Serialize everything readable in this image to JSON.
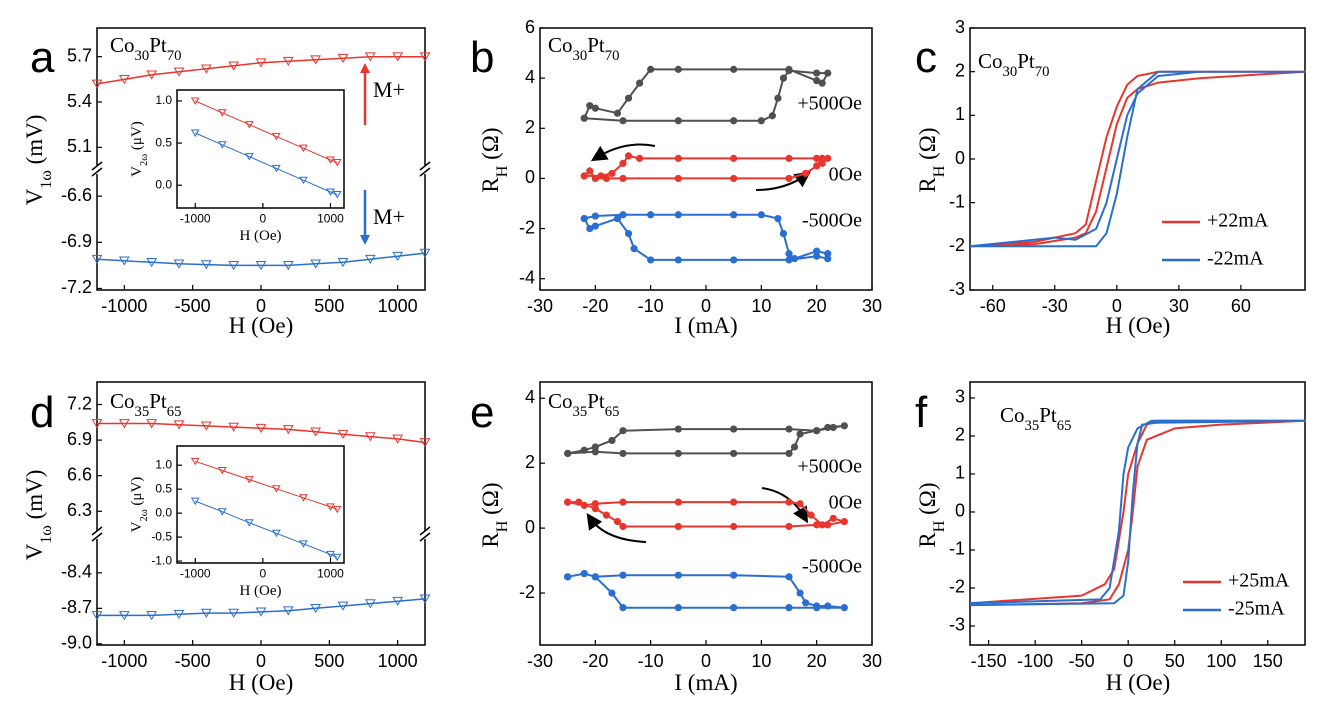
{
  "chart_data": [
    {
      "type": "line",
      "label": "a",
      "title_parts": [
        "Co",
        "30",
        "Pt",
        "70"
      ],
      "xlabel": "H (Oe)",
      "ylabel_parts": [
        "V",
        "1ω",
        " (mV)"
      ],
      "xlim": [
        -1200,
        1200
      ],
      "xticks": [
        -1000,
        -500,
        0,
        500,
        1000
      ],
      "y_segments": [
        {
          "ylim": [
            4.95,
            5.89
          ],
          "yticks": [
            5.1,
            5.4,
            5.7
          ]
        },
        {
          "ylim": [
            -7.21,
            -6.43
          ],
          "yticks": [
            -7.2,
            -6.9,
            -6.6
          ]
        }
      ],
      "series": [
        {
          "color": "#e8352e",
          "marker": "triangle-open",
          "segment": 0,
          "x": [
            -1200,
            -1000,
            -800,
            -600,
            -400,
            -200,
            0,
            200,
            400,
            600,
            800,
            1000,
            1200
          ],
          "values": [
            5.52,
            5.55,
            5.58,
            5.6,
            5.62,
            5.64,
            5.66,
            5.67,
            5.68,
            5.69,
            5.7,
            5.7,
            5.7
          ]
        },
        {
          "color": "#2a6ecf",
          "marker": "triangle-open",
          "segment": 1,
          "x": [
            -1200,
            -1000,
            -800,
            -600,
            -400,
            -200,
            0,
            200,
            400,
            600,
            800,
            1000,
            1200
          ],
          "values": [
            -7.01,
            -7.02,
            -7.03,
            -7.04,
            -7.045,
            -7.05,
            -7.05,
            -7.05,
            -7.04,
            -7.03,
            -7.01,
            -6.99,
            -6.97
          ]
        }
      ],
      "annotations": [
        {
          "text": "M+",
          "color": "#e8352e"
        },
        {
          "text": "M+",
          "color": "#2a6ecf"
        }
      ],
      "inset": {
        "type": "line",
        "xlabel": "H (Oe)",
        "ylabel_parts": [
          "V",
          "2ω",
          " (μV)"
        ],
        "xlim": [
          -1270,
          1200
        ],
        "xticks": [
          -1000,
          0,
          1000
        ],
        "ylim": [
          -0.27,
          1.13
        ],
        "yticks": [
          {
            "value": 0,
            "label": "0.0"
          },
          {
            "value": 0.5,
            "label": "0.5"
          },
          {
            "value": 1,
            "label": "1.0"
          }
        ],
        "series": [
          {
            "color": "#e8352e",
            "marker": "triangle-open",
            "x": [
              -1000,
              -600,
              -200,
              200,
              600,
              1000,
              1100
            ],
            "values": [
              1.0,
              0.86,
              0.72,
              0.58,
              0.44,
              0.3,
              0.27
            ]
          },
          {
            "color": "#2a6ecf",
            "marker": "triangle-open",
            "x": [
              -1000,
              -600,
              -200,
              200,
              600,
              1000,
              1100
            ],
            "values": [
              0.62,
              0.48,
              0.34,
              0.2,
              0.06,
              -0.08,
              -0.11
            ]
          }
        ]
      }
    },
    {
      "type": "line",
      "label": "b",
      "title_parts": [
        "Co",
        "30",
        "Pt",
        "70"
      ],
      "xlabel": "I (mA)",
      "ylabel_parts": [
        "R",
        "H",
        " (Ω)"
      ],
      "xlim": [
        -30,
        30
      ],
      "xticks": [
        -30,
        -20,
        -10,
        0,
        10,
        20,
        30
      ],
      "ylim": [
        -4.45,
        6
      ],
      "yticks": [
        -4,
        -2,
        0,
        2,
        4,
        6
      ],
      "series": [
        {
          "name": "+500Oe",
          "color": "#505050",
          "marker": "circle",
          "x": [
            -22,
            -15,
            -5,
            5,
            10,
            12,
            13,
            14,
            15,
            20,
            22,
            21,
            20,
            15,
            5,
            -5,
            -10,
            -12,
            -14,
            -16,
            -20,
            -21,
            -22
          ],
          "values": [
            2.4,
            2.3,
            2.3,
            2.3,
            2.3,
            2.5,
            3.2,
            4.0,
            4.3,
            4.2,
            4.2,
            3.8,
            3.9,
            4.35,
            4.35,
            4.35,
            4.35,
            3.8,
            3.2,
            2.6,
            2.8,
            2.9,
            2.4
          ]
        },
        {
          "name": "0Oe",
          "color": "#e8352e",
          "marker": "circle",
          "x": [
            -22,
            -21,
            -20,
            -18,
            -15,
            -5,
            5,
            15,
            18,
            20,
            21,
            22,
            21,
            20,
            15,
            5,
            -5,
            -12,
            -14,
            -15,
            -17,
            -19,
            -22
          ],
          "values": [
            0.1,
            0.3,
            0.0,
            0.0,
            0.0,
            0.0,
            0.0,
            0.0,
            0.2,
            0.5,
            0.8,
            0.8,
            0.6,
            0.8,
            0.8,
            0.8,
            0.8,
            0.8,
            0.9,
            0.6,
            0.2,
            0.1,
            0.1
          ]
        },
        {
          "name": "-500Oe",
          "color": "#2a6ecf",
          "marker": "circle",
          "x": [
            -22,
            -20,
            -15,
            -10,
            -5,
            5,
            10,
            13,
            14,
            15,
            16,
            20,
            22,
            22,
            20,
            15,
            5,
            -5,
            -10,
            -13,
            -14,
            -16,
            -20,
            -21,
            -22
          ],
          "values": [
            -1.6,
            -1.5,
            -1.45,
            -1.45,
            -1.45,
            -1.45,
            -1.45,
            -1.6,
            -2.2,
            -3.0,
            -3.2,
            -2.9,
            -3.0,
            -3.2,
            -3.1,
            -3.25,
            -3.25,
            -3.25,
            -3.25,
            -2.8,
            -2.2,
            -1.6,
            -1.9,
            -2.0,
            -1.6
          ]
        }
      ]
    },
    {
      "type": "line",
      "label": "c",
      "title_parts": [
        "Co",
        "30",
        "Pt",
        "70"
      ],
      "xlabel": "H (Oe)",
      "ylabel_parts": [
        "R",
        "H",
        " (Ω)"
      ],
      "xlim": [
        -71,
        91
      ],
      "xticks": [
        -60,
        -30,
        0,
        30,
        60
      ],
      "ylim": [
        -3,
        3
      ],
      "yticks": [
        -3,
        -2,
        -1,
        0,
        1,
        2,
        3
      ],
      "legend": "lower right",
      "series": [
        {
          "name": "+22mA",
          "color": "#e8352e",
          "x": [
            -71,
            -40,
            -20,
            -15,
            -10,
            -5,
            0,
            5,
            10,
            20,
            40,
            91,
            40,
            20,
            10,
            5,
            0,
            -5,
            -10,
            -15,
            -20,
            -40,
            -71
          ],
          "values": [
            -2.0,
            -1.9,
            -1.7,
            -1.5,
            -0.5,
            0.5,
            1.2,
            1.7,
            1.9,
            2.0,
            2.0,
            2.0,
            1.85,
            1.75,
            1.6,
            1.4,
            0.8,
            -0.2,
            -1.2,
            -1.7,
            -1.8,
            -1.95,
            -2.0
          ]
        },
        {
          "name": "-22mA",
          "color": "#2a6ecf",
          "x": [
            -71,
            -30,
            -20,
            -10,
            -5,
            0,
            5,
            10,
            20,
            40,
            91,
            40,
            20,
            10,
            5,
            0,
            -5,
            -10,
            -30,
            -71
          ],
          "values": [
            -2.0,
            -1.8,
            -1.85,
            -1.6,
            -1.0,
            0.0,
            1.0,
            1.5,
            1.9,
            2.0,
            2.0,
            2.0,
            2.0,
            1.6,
            0.5,
            -0.8,
            -1.7,
            -2.0,
            -2.0,
            -2.0
          ]
        }
      ]
    },
    {
      "type": "line",
      "label": "d",
      "title_parts": [
        "Co",
        "35",
        "Pt",
        "65"
      ],
      "xlabel": "H (Oe)",
      "ylabel_parts": [
        "V",
        "1ω",
        " (mV)"
      ],
      "xlim": [
        -1200,
        1200
      ],
      "xticks": [
        -1000,
        -500,
        0,
        500,
        1000
      ],
      "y_segments": [
        {
          "ylim": [
            6.1,
            7.39
          ],
          "yticks": [
            6.3,
            6.6,
            6.9,
            7.2
          ]
        },
        {
          "ylim": [
            -9.01,
            -8.08
          ],
          "yticks": [
            {
              "value": -9,
              "label": "-9.0"
            },
            -8.7,
            -8.4
          ]
        }
      ],
      "series": [
        {
          "color": "#e8352e",
          "marker": "triangle-open",
          "segment": 0,
          "x": [
            -1200,
            -1000,
            -800,
            -600,
            -400,
            -200,
            0,
            200,
            400,
            600,
            800,
            1000,
            1200
          ],
          "values": [
            7.04,
            7.04,
            7.04,
            7.03,
            7.02,
            7.01,
            7.0,
            6.99,
            6.97,
            6.95,
            6.93,
            6.91,
            6.88
          ]
        },
        {
          "color": "#2a6ecf",
          "marker": "triangle-open",
          "segment": 1,
          "x": [
            -1200,
            -1000,
            -800,
            -600,
            -400,
            -200,
            0,
            200,
            400,
            600,
            800,
            1000,
            1200
          ],
          "values": [
            -8.76,
            -8.76,
            -8.76,
            -8.75,
            -8.74,
            -8.74,
            -8.73,
            -8.72,
            -8.7,
            -8.68,
            -8.66,
            -8.64,
            -8.62
          ]
        }
      ],
      "inset": {
        "type": "line",
        "xlabel": "H (Oe)",
        "ylabel_parts": [
          "V",
          "2ω",
          " (μV)"
        ],
        "xlim": [
          -1270,
          1200
        ],
        "xticks": [
          -1000,
          0,
          1000
        ],
        "ylim": [
          -1.04,
          1.4
        ],
        "yticks": [
          {
            "value": -1,
            "label": "-1.0"
          },
          {
            "value": -0.5,
            "label": "-0.5"
          },
          {
            "value": 0,
            "label": "0.0"
          },
          {
            "value": 0.5,
            "label": "0.5"
          },
          {
            "value": 1,
            "label": "1.0"
          }
        ],
        "series": [
          {
            "color": "#e8352e",
            "marker": "triangle-open",
            "x": [
              -1000,
              -600,
              -200,
              200,
              600,
              1000,
              1100
            ],
            "values": [
              1.08,
              0.89,
              0.7,
              0.51,
              0.32,
              0.13,
              0.08
            ]
          },
          {
            "color": "#2a6ecf",
            "marker": "triangle-open",
            "x": [
              -1000,
              -600,
              -200,
              200,
              600,
              1000,
              1100
            ],
            "values": [
              0.25,
              0.03,
              -0.2,
              -0.42,
              -0.64,
              -0.86,
              -0.92
            ]
          }
        ]
      }
    },
    {
      "type": "line",
      "label": "e",
      "title_parts": [
        "Co",
        "35",
        "Pt",
        "65"
      ],
      "xlabel": "I (mA)",
      "ylabel_parts": [
        "R",
        "H",
        " (Ω)"
      ],
      "xlim": [
        -30,
        30
      ],
      "xticks": [
        -30,
        -20,
        -10,
        0,
        10,
        20,
        30
      ],
      "ylim": [
        -3.6,
        4.5
      ],
      "yticks": [
        -2,
        0,
        2,
        4
      ],
      "series": [
        {
          "name": "+500Oe",
          "color": "#505050",
          "marker": "circle",
          "x": [
            -25,
            -20,
            -15,
            -5,
            5,
            15,
            16,
            17,
            20,
            22,
            25,
            23,
            20,
            15,
            5,
            -5,
            -15,
            -17,
            -20,
            -22,
            -25
          ],
          "values": [
            2.3,
            2.35,
            2.3,
            2.3,
            2.3,
            2.3,
            2.5,
            2.9,
            3.0,
            3.1,
            3.15,
            3.1,
            3.0,
            3.05,
            3.05,
            3.05,
            3.0,
            2.7,
            2.5,
            2.4,
            2.3
          ]
        },
        {
          "name": "0Oe",
          "color": "#e8352e",
          "marker": "circle",
          "x": [
            -25,
            -22,
            -20,
            -15,
            -5,
            5,
            15,
            17,
            19,
            21,
            23,
            25,
            22,
            20,
            15,
            5,
            -5,
            -15,
            -16,
            -18,
            -20,
            -23,
            -25
          ],
          "values": [
            0.8,
            0.7,
            0.75,
            0.8,
            0.8,
            0.8,
            0.8,
            0.75,
            0.4,
            0.1,
            0.3,
            0.2,
            0.1,
            0.1,
            0.05,
            0.05,
            0.05,
            0.05,
            0.2,
            0.4,
            0.6,
            0.8,
            0.8
          ]
        },
        {
          "name": "-500Oe",
          "color": "#2a6ecf",
          "marker": "circle",
          "x": [
            -25,
            -22,
            -20,
            -15,
            -5,
            5,
            15,
            17,
            18,
            20,
            22,
            25,
            20,
            15,
            5,
            -5,
            -15,
            -17,
            -20,
            -22,
            -25
          ],
          "values": [
            -1.5,
            -1.4,
            -1.5,
            -1.45,
            -1.45,
            -1.45,
            -1.5,
            -2.0,
            -2.3,
            -2.4,
            -2.4,
            -2.45,
            -2.45,
            -2.45,
            -2.45,
            -2.45,
            -2.45,
            -2.0,
            -1.5,
            -1.4,
            -1.5
          ]
        }
      ]
    },
    {
      "type": "line",
      "label": "f",
      "title_parts": [
        "Co",
        "35",
        "Pt",
        "65"
      ],
      "xlabel": "H (Oe)",
      "ylabel_parts": [
        "R",
        "H",
        " (Ω)"
      ],
      "xlim": [
        -170,
        190
      ],
      "xticks": [
        -150,
        -100,
        -50,
        0,
        50,
        100,
        150
      ],
      "ylim": [
        -3.5,
        3.42
      ],
      "yticks": [
        -3,
        -2,
        -1,
        0,
        1,
        2,
        3
      ],
      "legend": "lower right",
      "series": [
        {
          "name": "+25mA",
          "color": "#e8352e",
          "x": [
            -170,
            -50,
            -25,
            -15,
            -5,
            0,
            10,
            20,
            30,
            190,
            100,
            50,
            20,
            10,
            5,
            0,
            -10,
            -20,
            -50,
            -170
          ],
          "values": [
            -2.4,
            -2.2,
            -1.9,
            -1.5,
            0.0,
            1.0,
            1.8,
            2.3,
            2.4,
            2.4,
            2.3,
            2.2,
            1.9,
            1.2,
            0.0,
            -1.0,
            -1.9,
            -2.3,
            -2.4,
            -2.45
          ]
        },
        {
          "name": "-25mA",
          "color": "#2a6ecf",
          "x": [
            -170,
            -30,
            -20,
            -10,
            -5,
            0,
            10,
            25,
            190,
            30,
            15,
            10,
            5,
            0,
            -5,
            -15,
            -170
          ],
          "values": [
            -2.4,
            -2.3,
            -2.0,
            -0.5,
            1.0,
            1.7,
            2.2,
            2.4,
            2.4,
            2.35,
            2.3,
            1.8,
            0.5,
            -1.3,
            -2.2,
            -2.4,
            -2.45
          ]
        }
      ]
    }
  ]
}
